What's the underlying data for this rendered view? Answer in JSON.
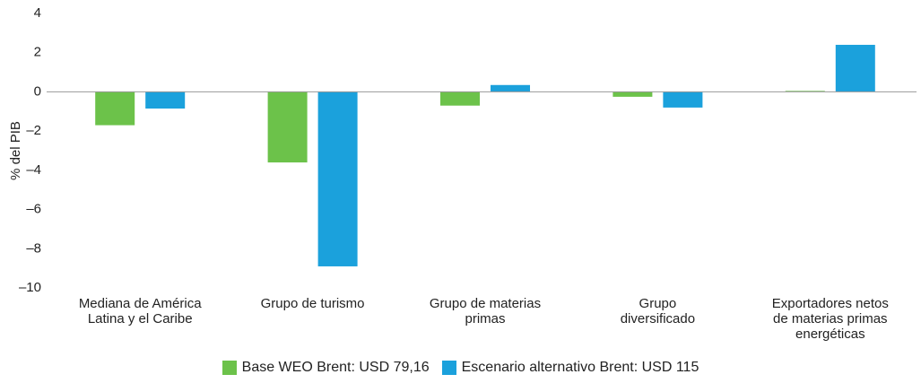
{
  "chart_data": {
    "type": "bar",
    "ylabel": "% del PIB",
    "categories": [
      "Mediana de América\nLatina y el Caribe",
      "Grupo de turismo",
      "Grupo de materias\nprimas",
      "Grupo\ndiversificado",
      "Exportadores netos\nde materias primas\nenergéticas"
    ],
    "series": [
      {
        "name": "Base WEO Brent: USD 79,16",
        "color": "#6cc24a",
        "values": [
          -1.7,
          -3.6,
          -0.7,
          -0.25,
          0.05
        ]
      },
      {
        "name": "Escenario alternativo Brent: USD 115",
        "color": "#1ba1dc",
        "values": [
          -0.85,
          -8.9,
          0.35,
          -0.8,
          2.4
        ]
      }
    ],
    "ylim": [
      -10,
      4
    ],
    "yticks": [
      4,
      2,
      0,
      {
        "value": -2,
        "label": "–2"
      },
      {
        "value": -4,
        "label": "–4"
      },
      {
        "value": -6,
        "label": "–6"
      },
      {
        "value": -8,
        "label": "–8"
      },
      {
        "value": -10,
        "label": "–10"
      }
    ]
  }
}
